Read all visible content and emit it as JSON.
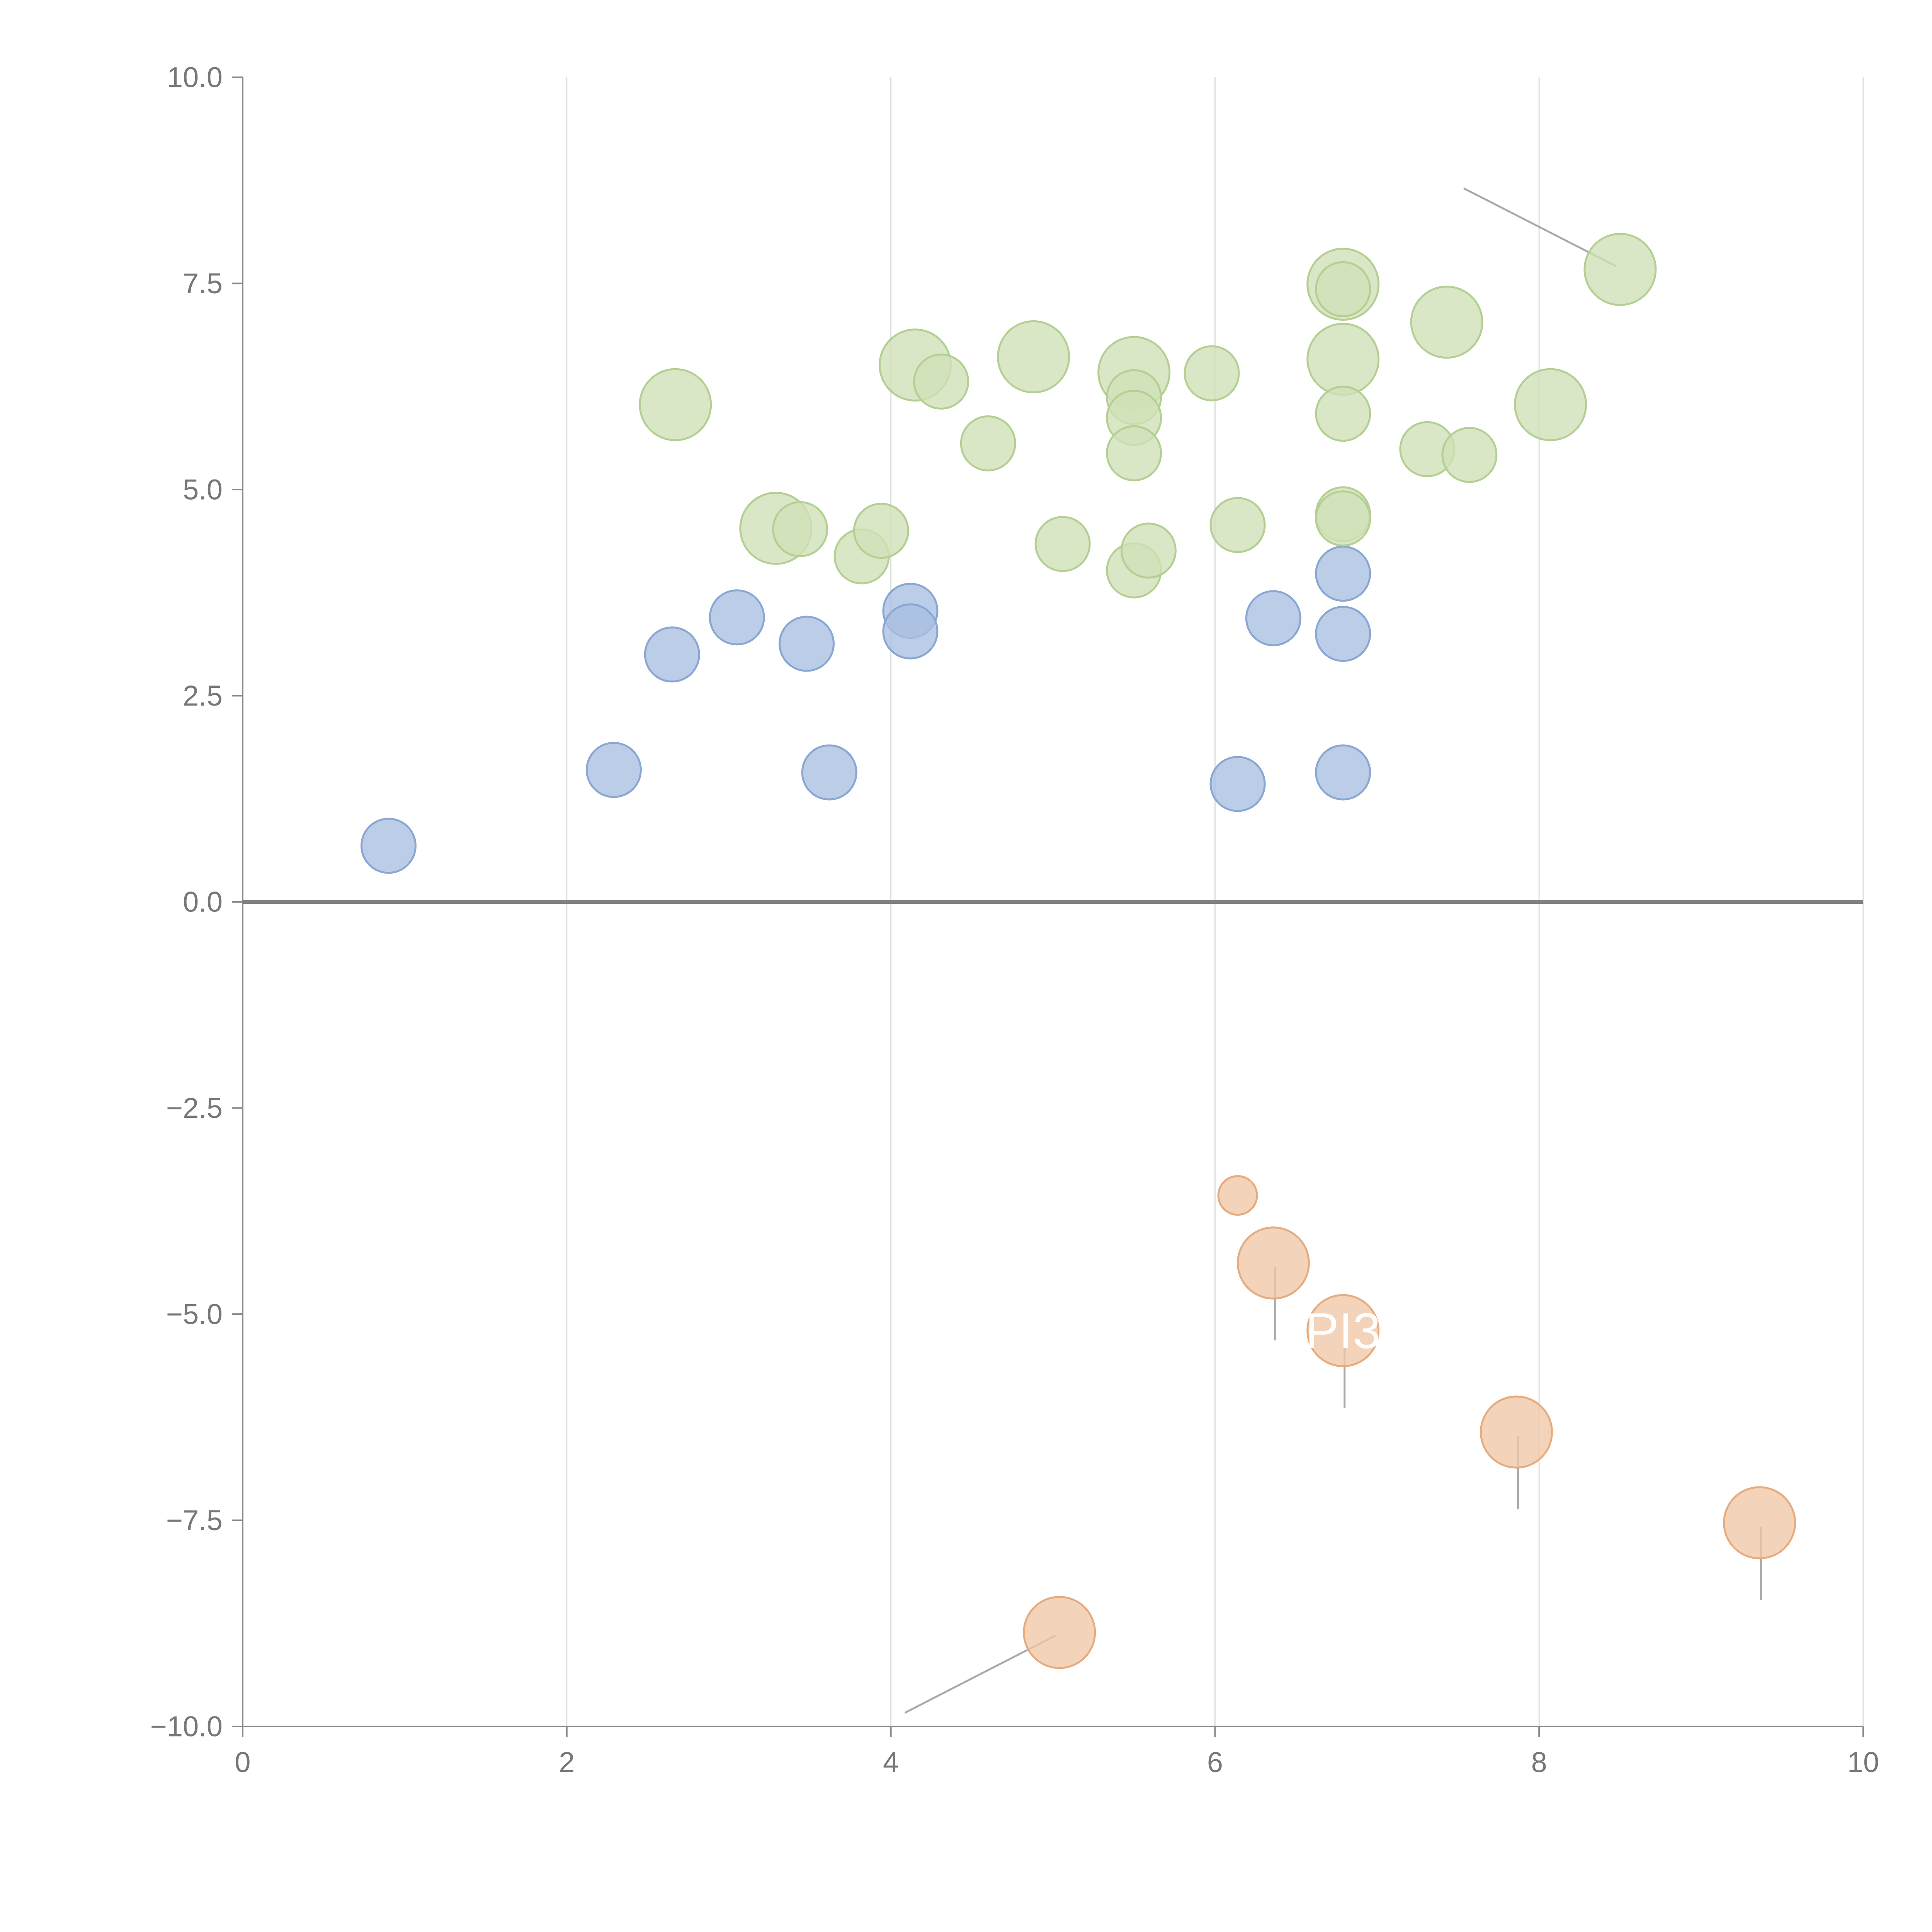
{
  "colors": {
    "blue_fill": "#a9bfe0",
    "blue_stroke": "#8aa7d3",
    "green_fill": "#cfe0b6",
    "green_stroke": "#b4cf92",
    "orange_fill": "#f0c8a6",
    "orange_stroke": "#e6ab7e",
    "grid": "#dddddd",
    "axis": "#888888",
    "zero_line": "#808080",
    "tick_text": "#777777",
    "leader": "#aaaaaa",
    "label_text": "#ffffff"
  },
  "chart_data": {
    "type": "scatter",
    "title": "",
    "xlabel": "",
    "ylabel": "",
    "xlim": [
      0,
      10
    ],
    "ylim": [
      -10,
      10
    ],
    "x_ticks": [
      "0",
      "2",
      "4",
      "6",
      "8",
      "10"
    ],
    "y_ticks": [
      "−10.0",
      "−7.5",
      "−5.0",
      "−2.5",
      "0.0",
      "2.5",
      "5.0",
      "7.5",
      "10.0"
    ],
    "x_tick_values": [
      0,
      2,
      4,
      6,
      8,
      10
    ],
    "y_tick_values": [
      -10,
      -7.5,
      -5,
      -2.5,
      0,
      2.5,
      5,
      7.5,
      10
    ],
    "vertical_grid": true,
    "horizontal_grid": false,
    "zero_line": true,
    "legend": "none",
    "series": [
      {
        "color": "blue",
        "points": [
          {
            "x": 0.9,
            "y": 0.68,
            "size": 1
          },
          {
            "x": 2.29,
            "y": 1.6,
            "size": 1
          },
          {
            "x": 2.65,
            "y": 3.0,
            "size": 1
          },
          {
            "x": 3.05,
            "y": 3.45,
            "size": 1
          },
          {
            "x": 3.48,
            "y": 3.13,
            "size": 1
          },
          {
            "x": 3.62,
            "y": 1.57,
            "size": 1
          },
          {
            "x": 4.12,
            "y": 3.53,
            "size": 1
          },
          {
            "x": 4.12,
            "y": 3.28,
            "size": 1
          },
          {
            "x": 6.14,
            "y": 1.43,
            "size": 1
          },
          {
            "x": 6.36,
            "y": 3.44,
            "size": 1
          },
          {
            "x": 6.79,
            "y": 3.98,
            "size": 1
          },
          {
            "x": 6.79,
            "y": 3.25,
            "size": 1
          },
          {
            "x": 6.79,
            "y": 1.57,
            "size": 1
          }
        ]
      },
      {
        "color": "green",
        "points": [
          {
            "x": 2.67,
            "y": 6.03,
            "size": 2
          },
          {
            "x": 3.29,
            "y": 4.53,
            "size": 2
          },
          {
            "x": 3.44,
            "y": 4.52,
            "size": 1
          },
          {
            "x": 3.82,
            "y": 4.19,
            "size": 1
          },
          {
            "x": 3.94,
            "y": 4.5,
            "size": 1
          },
          {
            "x": 4.15,
            "y": 6.51,
            "size": 2
          },
          {
            "x": 4.31,
            "y": 6.31,
            "size": 1
          },
          {
            "x": 4.6,
            "y": 5.56,
            "size": 1
          },
          {
            "x": 4.88,
            "y": 6.61,
            "size": 2
          },
          {
            "x": 5.06,
            "y": 4.34,
            "size": 1
          },
          {
            "x": 5.5,
            "y": 6.42,
            "size": 2
          },
          {
            "x": 5.5,
            "y": 6.12,
            "size": 1
          },
          {
            "x": 5.5,
            "y": 5.87,
            "size": 1
          },
          {
            "x": 5.5,
            "y": 5.44,
            "size": 1
          },
          {
            "x": 5.5,
            "y": 4.02,
            "size": 1
          },
          {
            "x": 5.59,
            "y": 4.26,
            "size": 1
          },
          {
            "x": 5.98,
            "y": 6.41,
            "size": 1
          },
          {
            "x": 6.14,
            "y": 4.57,
            "size": 1
          },
          {
            "x": 6.79,
            "y": 7.49,
            "size": 2
          },
          {
            "x": 6.79,
            "y": 7.43,
            "size": 1
          },
          {
            "x": 6.79,
            "y": 6.58,
            "size": 2
          },
          {
            "x": 6.79,
            "y": 5.92,
            "size": 1
          },
          {
            "x": 6.79,
            "y": 4.7,
            "size": 1
          },
          {
            "x": 6.79,
            "y": 4.65,
            "size": 1
          },
          {
            "x": 7.31,
            "y": 5.49,
            "size": 1
          },
          {
            "x": 7.43,
            "y": 7.03,
            "size": 2
          },
          {
            "x": 7.57,
            "y": 5.42,
            "size": 1
          },
          {
            "x": 8.07,
            "y": 6.03,
            "size": 2
          },
          {
            "x": 8.5,
            "y": 7.67,
            "size": 2
          }
        ]
      },
      {
        "color": "orange",
        "points": [
          {
            "x": 5.04,
            "y": -8.86,
            "size": 2
          },
          {
            "x": 6.14,
            "y": -3.56,
            "size": 0
          },
          {
            "x": 6.36,
            "y": -4.38,
            "size": 2
          },
          {
            "x": 6.79,
            "y": -5.2,
            "size": 2
          },
          {
            "x": 7.86,
            "y": -6.43,
            "size": 2
          },
          {
            "x": 9.36,
            "y": -7.53,
            "size": 2
          }
        ]
      }
    ],
    "annotations": [
      {
        "text": "PI3",
        "x": 6.79,
        "y": -5.2
      }
    ]
  }
}
